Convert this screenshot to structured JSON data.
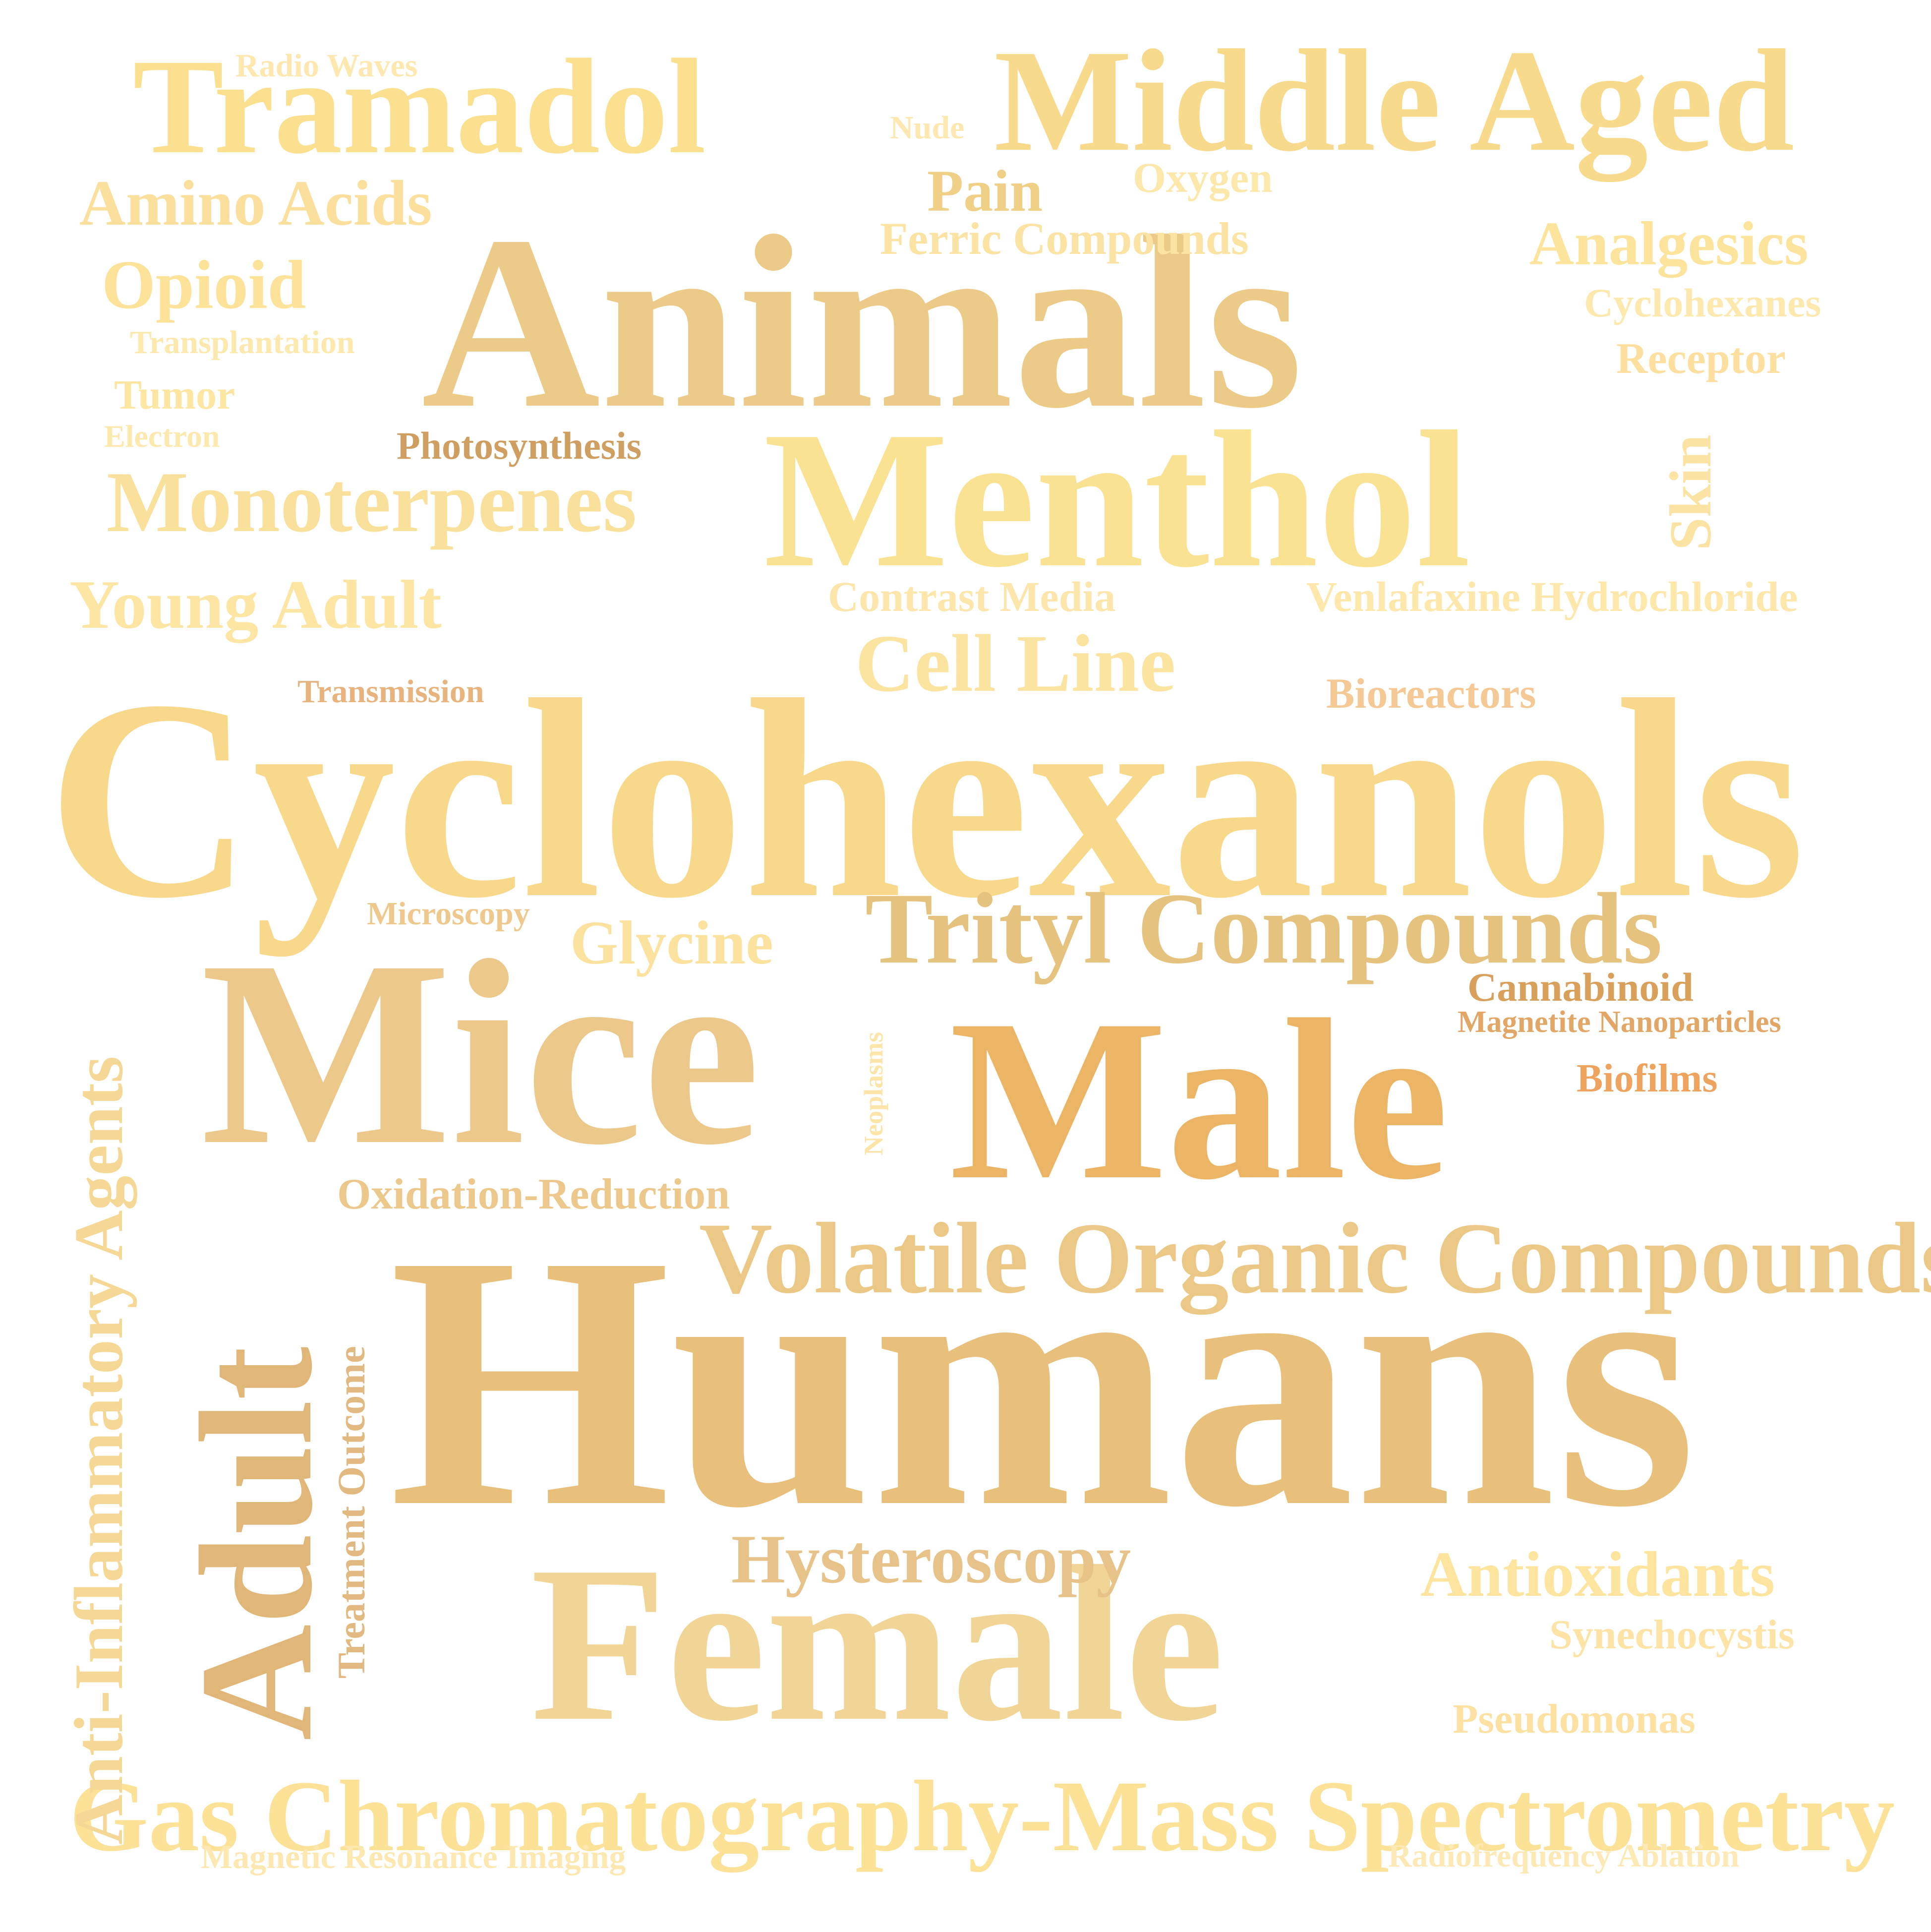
{
  "words": [
    {
      "text": "Humans",
      "color": "#e9c07b"
    },
    {
      "text": "Cyclohexanols",
      "color": "#f8d98c"
    },
    {
      "text": "Animals",
      "color": "#ecca87"
    },
    {
      "text": "Menthol",
      "color": "#fae293"
    },
    {
      "text": "Male",
      "color": "#ecb565"
    },
    {
      "text": "Female",
      "color": "#f1d596"
    },
    {
      "text": "Mice",
      "color": "#ecc88a"
    },
    {
      "text": "Middle Aged",
      "color": "#f8da8c"
    },
    {
      "text": "Tramadol",
      "color": "#fae08f"
    },
    {
      "text": "Adult",
      "color": "#e1b679"
    },
    {
      "text": "Volatile Organic Compounds",
      "color": "#ecc886"
    },
    {
      "text": "Gas Chromatography-Mass Spectrometry",
      "color": "#fbe297"
    },
    {
      "text": "Trityl Compounds",
      "color": "#e5c27d"
    },
    {
      "text": "Anti-Inflammatory Agents",
      "color": "#f5d896"
    },
    {
      "text": "Monoterpenes",
      "color": "#f9e09b"
    },
    {
      "text": "Cell Line",
      "color": "#fbe4a0"
    },
    {
      "text": "Young Adult",
      "color": "#fde6a3"
    },
    {
      "text": "Antioxidants",
      "color": "#fde5a0"
    },
    {
      "text": "Hysteroscopy",
      "color": "#e7c38a"
    },
    {
      "text": "Amino Acids",
      "color": "#fae09c"
    },
    {
      "text": "Opioid",
      "color": "#fde299"
    },
    {
      "text": "Analgesics",
      "color": "#fde49c"
    },
    {
      "text": "Glycine",
      "color": "#fbe29e"
    },
    {
      "text": "Pain",
      "color": "#f0cf87"
    },
    {
      "text": "Ferric Compounds",
      "color": "#fbe3a4"
    },
    {
      "text": "Cyclohexanes",
      "color": "#fde8ad"
    },
    {
      "text": "Receptor",
      "color": "#fde09f"
    },
    {
      "text": "Skin",
      "color": "#fbe4a3"
    },
    {
      "text": "Venlafaxine Hydrochloride",
      "color": "#fde7ab"
    },
    {
      "text": "Contrast Media",
      "color": "#fde6ab"
    },
    {
      "text": "Bioreactors",
      "color": "#f4c996"
    },
    {
      "text": "Photosynthesis",
      "color": "#ce9f60"
    },
    {
      "text": "Transmission",
      "color": "#e7b47e"
    },
    {
      "text": "Microscopy",
      "color": "#eec88c"
    },
    {
      "text": "Oxidation-Reduction",
      "color": "#ecc88c"
    },
    {
      "text": "Treatment Outcome",
      "color": "#e3b982"
    },
    {
      "text": "Neoplasms",
      "color": "#fde4a8"
    },
    {
      "text": "Cannabinoid",
      "color": "#d9a05c"
    },
    {
      "text": "Magnetite Nanoparticles",
      "color": "#e2a766"
    },
    {
      "text": "Biofilms",
      "color": "#eea35e"
    },
    {
      "text": "Synechocystis",
      "color": "#fde4a6"
    },
    {
      "text": "Pseudomonas",
      "color": "#fde1a2"
    },
    {
      "text": "Radio Waves",
      "color": "#fee8b0"
    },
    {
      "text": "Nude",
      "color": "#fde8b1"
    },
    {
      "text": "Oxygen",
      "color": "#fde8ac"
    },
    {
      "text": "Transplantation",
      "color": "#fde8ad"
    },
    {
      "text": "Tumor",
      "color": "#fde5a2"
    },
    {
      "text": "Electron",
      "color": "#fde8ae"
    },
    {
      "text": "Magnetic Resonance Imaging",
      "color": "#fee8b2"
    },
    {
      "text": "Radiofrequency Ablation",
      "color": "#fde9b5"
    }
  ]
}
